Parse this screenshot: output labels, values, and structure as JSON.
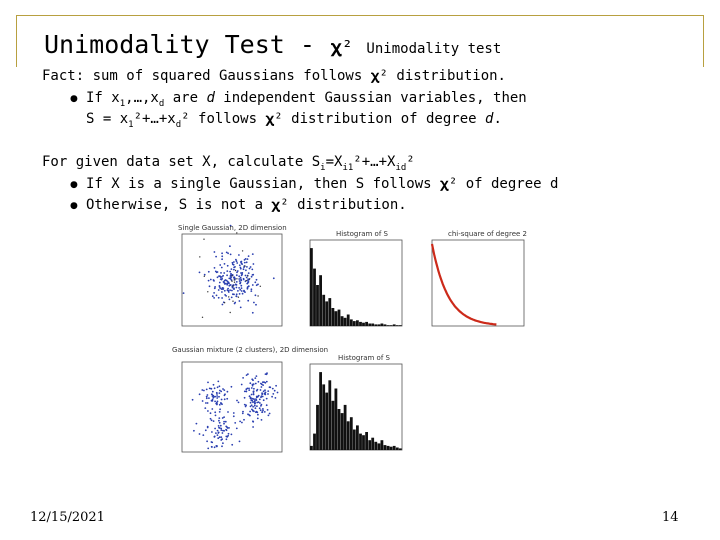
{
  "slide": {
    "title_main": "Unimodality Test -",
    "title_symbol": "𝛘²",
    "title_sub": "Unimodality test",
    "fact_line": "Fact: sum of squared Gaussians follows 𝛘² distribution.",
    "fact_b1_pre": "If x",
    "fact_b1_sub1": "1",
    "fact_b1_mid": ",…,x",
    "fact_b1_subd": "d",
    "fact_b1_post": " are ",
    "fact_b1_d": "d",
    "fact_b1_end": " independent Gaussian variables, then",
    "fact_b2_pre": "S = x",
    "fact_b2_sub1": "1",
    "fact_b2_mid": "²+…+x",
    "fact_b2_subd": "d",
    "fact_b2_post": "² follows 𝛘² distribution of degree ",
    "fact_b2_d": "d",
    "fact_b2_end": ".",
    "given_pre": "For given data set X, calculate S",
    "given_sub_i": "i",
    "given_mid": "=X",
    "given_sub_i1": "i1",
    "given_mid2": "²+…+X",
    "given_sub_id": "id",
    "given_end": "²",
    "given_b1": "If X is a single Gaussian, then S follows 𝛘² of degree d",
    "given_b2": "Otherwise, S is not a 𝛘² distribution.",
    "bullet_glyph": "●",
    "date": "12/15/2021",
    "page": "14"
  },
  "figures": {
    "titles": [
      "Single Gaussian, 2D dimension",
      "Histogram of S",
      "chi-square of degree 2",
      "Gaussian mixture (2 clusters), 2D dimension",
      "Histogram of S"
    ],
    "colors": {
      "scatter": "#2a3fb0",
      "curve": "#cc2a1a",
      "bars": "#111111",
      "frame": "#b8a040"
    }
  }
}
